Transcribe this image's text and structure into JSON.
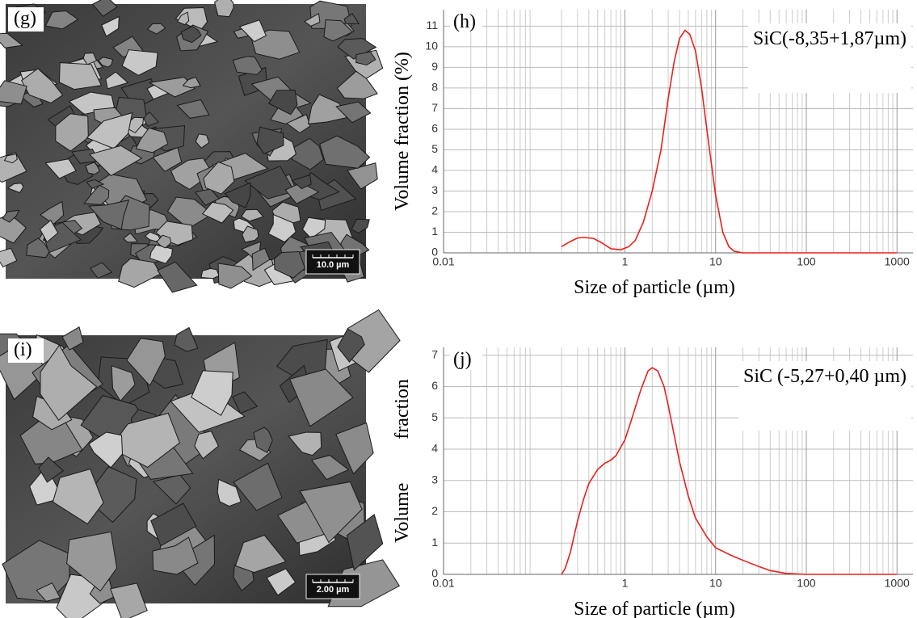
{
  "images": [
    {
      "label": "(g)",
      "scale_bar": "10.0 µm"
    },
    {
      "label": "(i)",
      "scale_bar": "2.00 µm"
    }
  ],
  "chart_data": [
    {
      "type": "line",
      "panel": "(h)",
      "annotation": "SiC(-8,35+1,87µm)",
      "y_label": "Volume fraction (%)",
      "x_label": "Size of particle (µm)",
      "x_scale": "log",
      "xlim": [
        0.01,
        1500
      ],
      "xticks": [
        0.01,
        1,
        10,
        100,
        1000
      ],
      "ylim": [
        0,
        11.8
      ],
      "yticks": [
        0,
        1,
        2,
        3,
        4,
        5,
        6,
        7,
        8,
        9,
        10,
        11
      ],
      "grid": true,
      "color": "#e8201c",
      "x": [
        0.2,
        0.25,
        0.3,
        0.35,
        0.45,
        0.55,
        0.7,
        0.9,
        1.1,
        1.3,
        1.6,
        2,
        2.5,
        3,
        3.5,
        4,
        4.6,
        5.2,
        6,
        7,
        8,
        9,
        10,
        12,
        14,
        16,
        20,
        100,
        1000
      ],
      "values": [
        0.3,
        0.55,
        0.72,
        0.75,
        0.7,
        0.5,
        0.2,
        0.15,
        0.3,
        0.6,
        1.5,
        3,
        5,
        7.5,
        9.3,
        10.4,
        10.8,
        10.6,
        9.8,
        8,
        6,
        4.3,
        2.8,
        1,
        0.3,
        0.08,
        0,
        0,
        0
      ]
    },
    {
      "type": "line",
      "panel": "(j)",
      "annotation": "SiC (-5,27+0,40 µm)",
      "y_label": "Volume fraction",
      "x_label": "Size of particle (µm)",
      "x_scale": "log",
      "xlim": [
        0.01,
        1500
      ],
      "xticks": [
        0.01,
        1,
        10,
        100,
        1000
      ],
      "ylim": [
        0,
        7.25
      ],
      "yticks": [
        0,
        1,
        2,
        3,
        4,
        5,
        6,
        7
      ],
      "grid": true,
      "color": "#e8201c",
      "x": [
        0.2,
        0.22,
        0.25,
        0.3,
        0.35,
        0.4,
        0.5,
        0.6,
        0.7,
        0.8,
        1,
        1.2,
        1.5,
        1.8,
        2,
        2.3,
        2.7,
        3,
        4,
        5,
        6,
        8,
        10,
        15,
        20,
        30,
        40,
        60,
        100,
        1000
      ],
      "values": [
        0,
        0.2,
        0.7,
        1.7,
        2.4,
        2.9,
        3.35,
        3.55,
        3.65,
        3.8,
        4.3,
        5,
        5.9,
        6.5,
        6.6,
        6.5,
        6,
        5.4,
        3.6,
        2.5,
        1.8,
        1.2,
        0.85,
        0.6,
        0.45,
        0.25,
        0.12,
        0.03,
        0,
        0
      ]
    }
  ]
}
